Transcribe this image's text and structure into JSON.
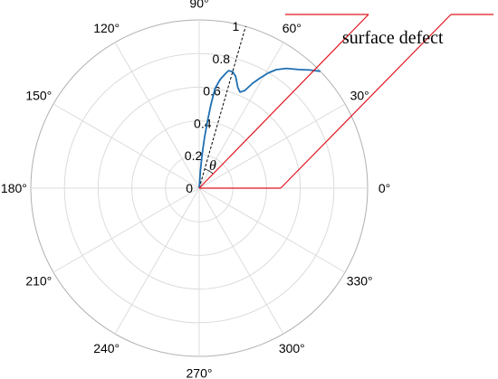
{
  "chart_data": {
    "type": "polar-line",
    "title": "",
    "angle_unit": "deg",
    "angle_ticks": [
      0,
      30,
      60,
      90,
      120,
      150,
      180,
      210,
      240,
      270,
      300,
      330
    ],
    "angle_tick_labels": [
      "0°",
      "30°",
      "60°",
      "90°",
      "120°",
      "150°",
      "180°",
      "210°",
      "240°",
      "270°",
      "300°",
      "330°"
    ],
    "r_lim": [
      0,
      1
    ],
    "r_ticks": [
      0,
      0.2,
      0.4,
      0.6,
      0.8,
      1
    ],
    "r_tick_labels": [
      "0",
      "0.2",
      "0.4",
      "0.6",
      "0.8",
      "1"
    ],
    "grid": true,
    "series": [
      {
        "color": "#1f6fb2",
        "theta_deg": [
          90,
          86,
          85,
          84,
          83,
          82,
          81,
          79,
          77,
          76,
          74,
          72,
          69,
          67,
          65,
          63,
          61,
          59,
          57,
          54,
          50,
          47,
          44
        ],
        "r": [
          0.0,
          0.1,
          0.2,
          0.3,
          0.4,
          0.5,
          0.6,
          0.66,
          0.7,
          0.72,
          0.72,
          0.7,
          0.64,
          0.62,
          0.64,
          0.7,
          0.75,
          0.8,
          0.84,
          0.88,
          0.92,
          0.96,
          1.0
        ]
      }
    ],
    "reference_line": {
      "theta_deg": 74,
      "style": "dashed",
      "color": "#000000"
    },
    "annotations": {
      "theta_label": "θ",
      "note_text": "surface defect",
      "note_color": "#e0141e"
    }
  }
}
